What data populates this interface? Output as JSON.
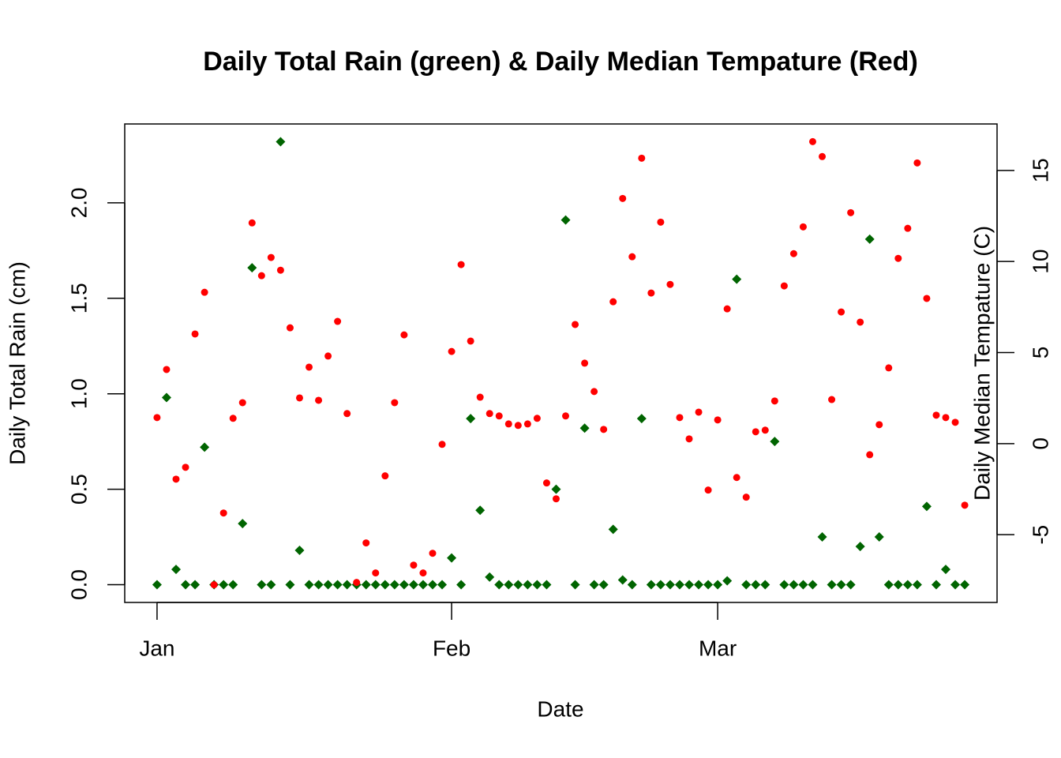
{
  "chart_data": {
    "type": "scatter",
    "title": "Daily Total Rain (green) & Daily Median Tempature (Red)",
    "xlabel": "Date",
    "ylabel": "Daily Total Rain (cm)",
    "y2label": "Daily Median Tempature (C)",
    "x": [
      0,
      1,
      2,
      3,
      4,
      5,
      6,
      7,
      8,
      9,
      10,
      11,
      12,
      13,
      14,
      15,
      16,
      17,
      18,
      19,
      20,
      21,
      22,
      23,
      24,
      25,
      26,
      27,
      28,
      29,
      30,
      31,
      32,
      33,
      34,
      35,
      36,
      37,
      38,
      39,
      40,
      41,
      42,
      43,
      44,
      45,
      46,
      47,
      48,
      49,
      50,
      51,
      52,
      53,
      54,
      55,
      56,
      57,
      58,
      59,
      60,
      61,
      62,
      63,
      64,
      65,
      66,
      67,
      68,
      69,
      70,
      71,
      72,
      73,
      74,
      75,
      76,
      77,
      78,
      79,
      80,
      81,
      82,
      83,
      84,
      85
    ],
    "xlim": [
      -3.4,
      88.4
    ],
    "xticks": [
      {
        "value": 0,
        "label": "Jan"
      },
      {
        "value": 31,
        "label": "Feb"
      },
      {
        "value": 59,
        "label": "Mar"
      }
    ],
    "ylim": [
      -0.093,
      2.413
    ],
    "yticks": [
      {
        "value": 0,
        "label": "0.0"
      },
      0.5,
      {
        "value": 1,
        "label": "1.0"
      },
      1.5,
      {
        "value": 2,
        "label": "2.0"
      }
    ],
    "y2lim": [
      -8.72,
      17.55
    ],
    "y2ticks": [
      -5,
      0,
      5,
      10,
      15
    ],
    "series": [
      {
        "color": "#006400",
        "marker": "diamond",
        "axis": "y",
        "values": [
          0,
          0.98,
          0.08,
          0,
          0,
          0.72,
          0,
          0,
          0,
          0.32,
          1.66,
          0,
          0,
          2.32,
          0,
          0.18,
          0,
          0,
          0,
          0,
          0,
          0,
          0,
          0,
          0,
          0,
          0,
          0,
          0,
          0,
          0,
          0.14,
          0,
          0.87,
          0.39,
          0.04,
          0,
          0,
          0,
          0,
          0,
          0,
          0.5,
          1.91,
          0,
          0.82,
          0,
          0,
          0.29,
          0.025,
          0,
          0.87,
          0,
          0,
          0,
          0,
          0,
          0,
          0,
          0,
          0.02,
          1.6,
          0,
          0,
          0,
          0.75,
          0,
          0,
          0,
          0,
          0.25,
          0,
          0,
          0,
          0.2,
          1.81,
          0.25,
          0,
          0,
          0,
          0,
          0.41,
          0,
          0.08,
          0,
          0
        ]
      },
      {
        "color": "#ff0000",
        "marker": "circle",
        "axis": "y2",
        "values": [
          1.43,
          4.07,
          -1.95,
          -1.3,
          6.02,
          8.31,
          -7.75,
          -3.81,
          1.39,
          2.25,
          12.12,
          9.22,
          10.22,
          9.52,
          6.36,
          2.51,
          4.2,
          2.38,
          4.81,
          6.71,
          1.65,
          -7.62,
          -5.45,
          -7.1,
          -1.77,
          2.25,
          5.97,
          -6.67,
          -7.1,
          -6.02,
          -0.04,
          5.06,
          9.83,
          5.63,
          2.55,
          1.65,
          1.52,
          1.08,
          1.0,
          1.08,
          1.39,
          -2.16,
          -3.03,
          1.52,
          6.54,
          4.42,
          2.86,
          0.78,
          7.79,
          13.46,
          10.26,
          15.67,
          8.27,
          12.16,
          8.74,
          1.43,
          0.26,
          1.73,
          -2.55,
          1.3,
          7.4,
          -1.86,
          -2.94,
          0.65,
          0.74,
          2.34,
          8.66,
          10.43,
          11.9,
          16.58,
          15.76,
          2.42,
          7.23,
          12.68,
          6.67,
          -0.61,
          1.04,
          4.16,
          10.17,
          11.82,
          15.41,
          7.97,
          1.56,
          1.43,
          1.17,
          -3.38
        ]
      }
    ]
  }
}
